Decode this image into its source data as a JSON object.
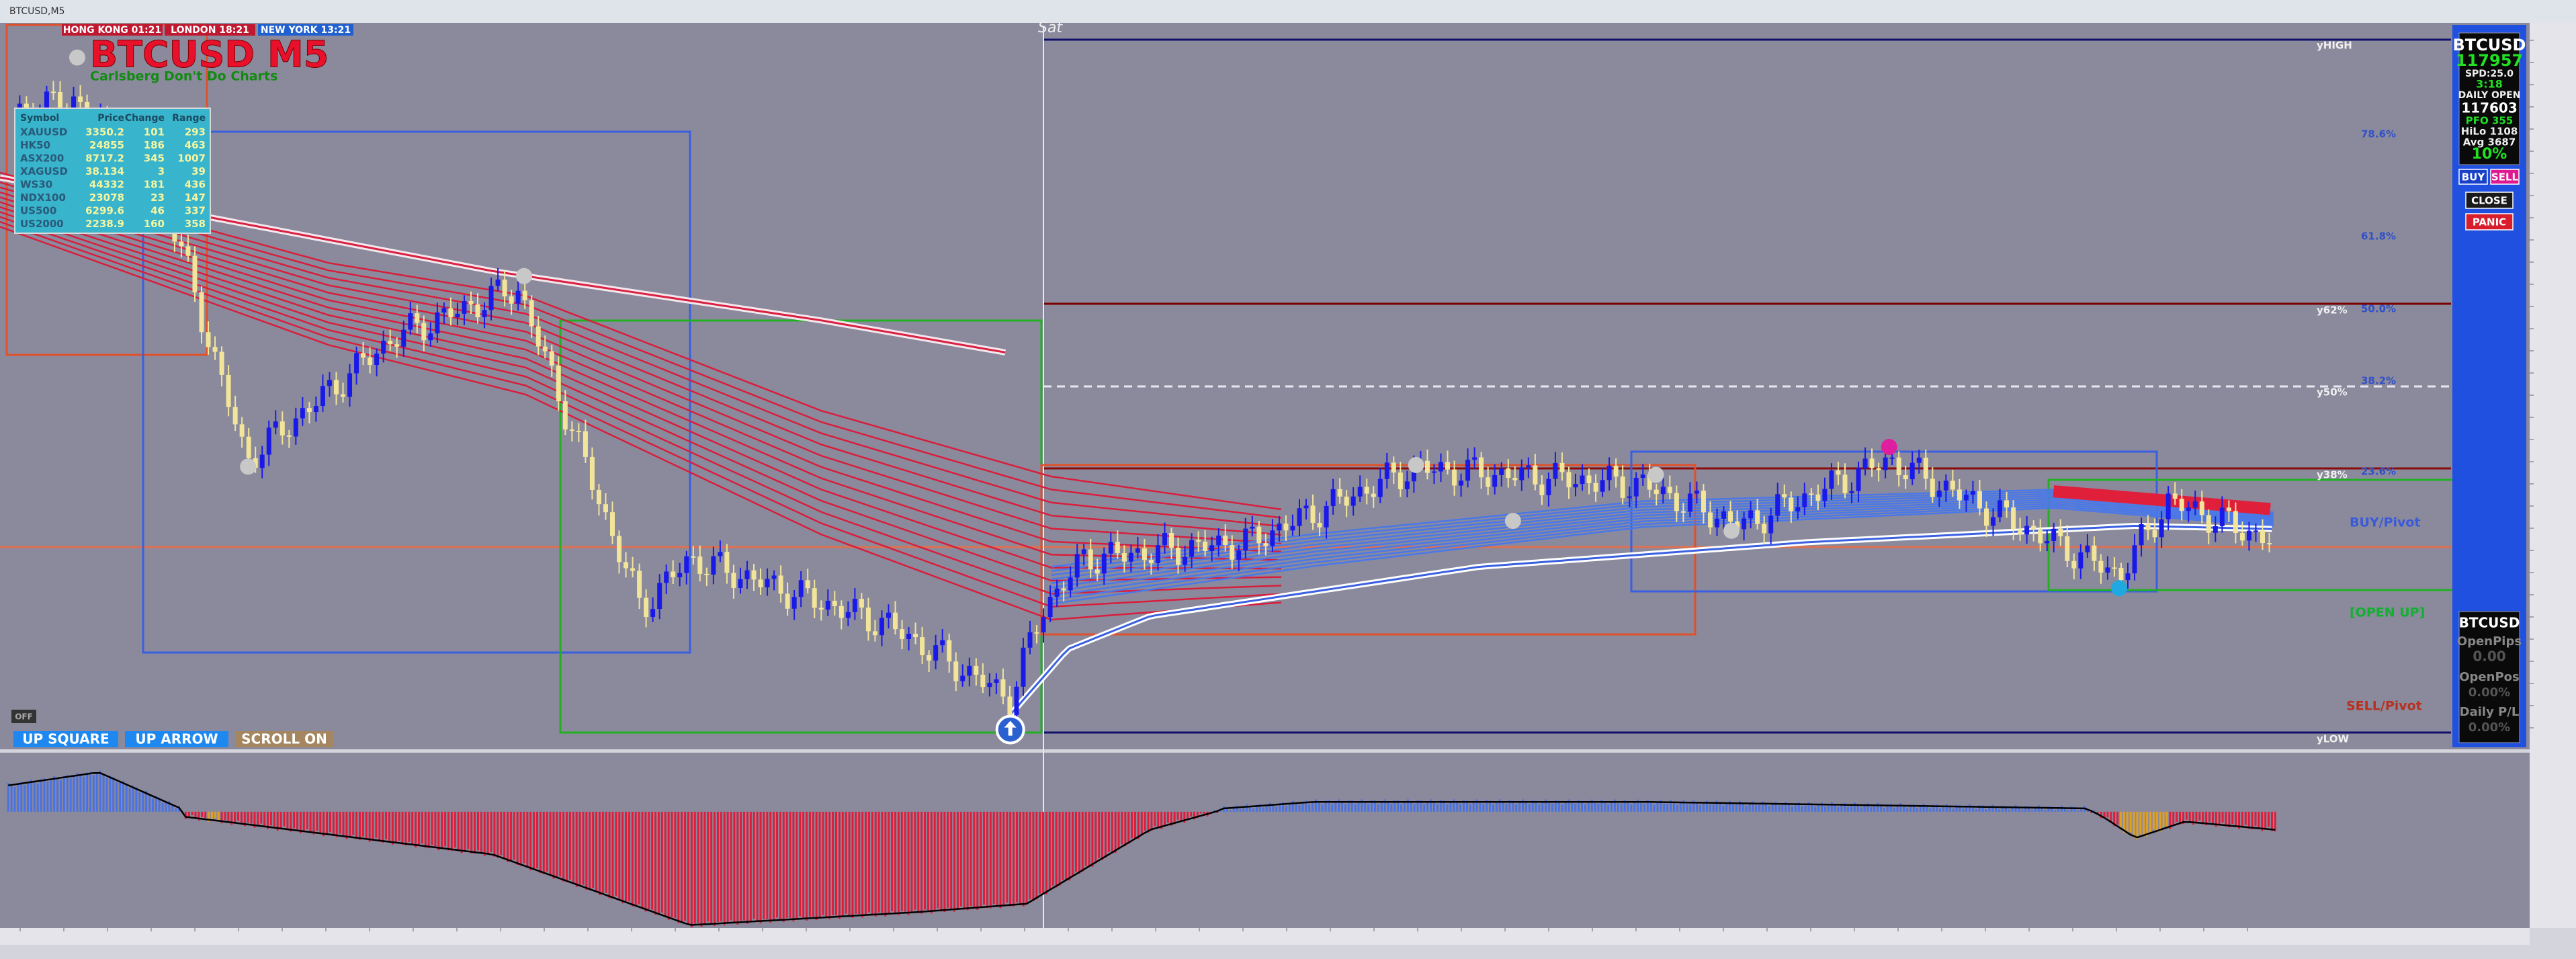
{
  "window": {
    "title": "BTCUSD,M5"
  },
  "sessions": [
    "HONG KONG 01:21",
    "LONDON 18:21",
    "NEW YORK 13:21"
  ],
  "chart": {
    "title": "BTCUSD M5",
    "subtitle": "Carlsberg Don't Do Charts",
    "day_label": "Sat"
  },
  "watchlist": {
    "headers": [
      "Symbol",
      "Price",
      "Change",
      "Range"
    ],
    "rows": [
      [
        "XAUUSD",
        "3350.2",
        "101",
        "293"
      ],
      [
        "HK50",
        "24855",
        "186",
        "463"
      ],
      [
        "ASX200",
        "8717.2",
        "345",
        "1007"
      ],
      [
        "XAGUSD",
        "38.134",
        "3",
        "39"
      ],
      [
        "WS30",
        "44332",
        "181",
        "436"
      ],
      [
        "NDX100",
        "23078",
        "23",
        "147"
      ],
      [
        "US500",
        "6299.6",
        "46",
        "337"
      ],
      [
        "US2000",
        "2238.9",
        "160",
        "358"
      ]
    ]
  },
  "levels": [
    "yHIGH",
    "78.6%",
    "61.8%",
    "y62%",
    "50.0%",
    "38.2%",
    "y50%",
    "23.6%",
    "y38%",
    "BUY/Pivot",
    "[OPEN UP]",
    "SELL/Pivot",
    "yLOW"
  ],
  "buttons": [
    "OFF",
    "UP SQUARE",
    "UP ARROW",
    "SCROLL ON"
  ],
  "trade_panel": {
    "symbol": "BTCUSD",
    "price": "117957",
    "spread": "SPD:25.0",
    "timer": "3:18",
    "daily_open_label": "DAILY OPEN",
    "daily_open": "117603",
    "pfo": "PFO  355",
    "hilo": "HiLo 1108",
    "avg": "Avg  3687",
    "percent": "10%",
    "buttons": [
      "BUY",
      "SELL",
      "CLOSE",
      "PANIC"
    ]
  },
  "account_panel": {
    "symbol": "BTCUSD",
    "open_pips_label": "OpenPips",
    "open_pips": "0.00",
    "open_pos_label": "OpenPos",
    "open_pos": "0.00%",
    "daily_pl_label": "Daily P/L",
    "daily_pl": "0.00%"
  }
}
